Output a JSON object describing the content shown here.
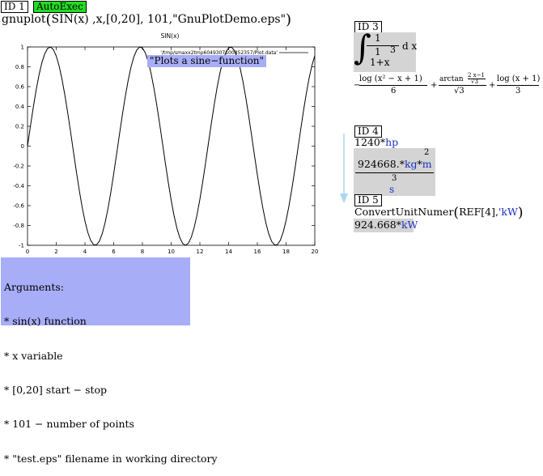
{
  "cell1": {
    "id_label": "ID 1",
    "badge": "AutoExec",
    "func": "gnuplot",
    "args_inline": "SIN(x) ,x,[0,20], 101,\"GnuPlotDemo.eps\"",
    "note": "\"Plots a sine−function\"",
    "arguments": [
      "Arguments:",
      "* sin(x) function",
      "* x variable",
      "* [0,20] start − stop",
      "* 101 − number of points",
      "* \"test.eps\" filename in working directory"
    ]
  },
  "chart_data": {
    "type": "line",
    "title": "SIN(x)",
    "legend": "'/tmp/smaxx2tmp6049307100852357/Plot.data'",
    "series": [
      {
        "name": "'/tmp/smaxx2tmp6049307100852357/Plot.data'",
        "function": "sin(x)",
        "x_start": 0,
        "x_stop": 20,
        "points": 101
      }
    ],
    "xlim": [
      0,
      20
    ],
    "ylim": [
      -1,
      1
    ],
    "xticks": [
      "0",
      "2",
      "4",
      "6",
      "8",
      "10",
      "12",
      "14",
      "16",
      "18",
      "20"
    ],
    "yticks": [
      "1",
      "0.8",
      "0.6",
      "0.4",
      "0.2",
      "0",
      "-0.2",
      "-0.4",
      "-0.6",
      "-0.8",
      "-1"
    ],
    "grid": false,
    "legend_position": "top-right"
  },
  "cell3": {
    "id_label": "ID 3",
    "integrand_num": "1",
    "integrand_den_num": "1",
    "integrand_den_den": "3",
    "integrand_plus": "1+x",
    "dx": "d x",
    "result": {
      "minus": "−",
      "t1_num": "log (x² − x + 1)",
      "t1_den": "6",
      "plus1": "+",
      "t2_num": "arctan",
      "t2_num_frac_num": "2 x−1",
      "t2_num_frac_den": "√3",
      "t2_den": "√3",
      "plus2": "+",
      "t3_num": "log (x + 1)",
      "t3_den": "3"
    }
  },
  "cell4": {
    "id_label": "ID 4",
    "input_num": "1240",
    "input_unit": "hp",
    "res_num": "924668.",
    "res_unit1": "kg",
    "res_unit2": "m",
    "res_exp": "2",
    "res_den_num": "3",
    "res_den_unit": "s"
  },
  "cell5": {
    "id_label": "ID 5",
    "func": "ConvertUnitNumer",
    "arg1": "REF[4],",
    "arg2": "'kW",
    "result_num": "924.668",
    "result_unit": "kW"
  }
}
